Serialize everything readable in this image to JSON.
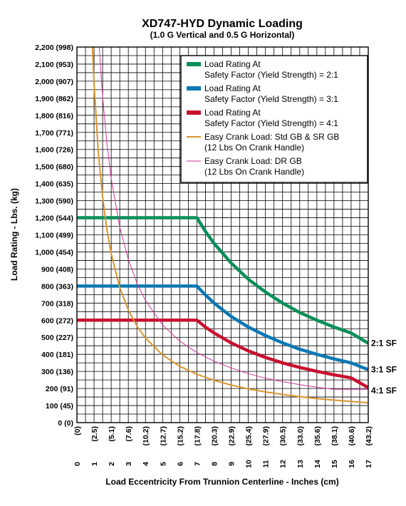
{
  "chart_data": {
    "type": "line",
    "title": "XD747-HYD Dynamic Loading",
    "subtitle": "(1.0 G Vertical and 0.5 G Horizontal)",
    "xlabel": "Load Eccentricity From Trunnion Centerline - Inches (cm)",
    "ylabel": "Load Rating - Lbs. (kg)",
    "xlim": [
      0,
      17
    ],
    "ylim": [
      0,
      2200
    ],
    "grid": true,
    "legend_position": "top-right",
    "x_ticks": [
      {
        "in": "0",
        "cm": "(0)"
      },
      {
        "in": "1",
        "cm": "(2.5)"
      },
      {
        "in": "2",
        "cm": "(5.1)"
      },
      {
        "in": "3",
        "cm": "(7.6)"
      },
      {
        "in": "4",
        "cm": "(10.2)"
      },
      {
        "in": "5",
        "cm": "(12.7)"
      },
      {
        "in": "6",
        "cm": "(15.2)"
      },
      {
        "in": "7",
        "cm": "(17.8)"
      },
      {
        "in": "8",
        "cm": "(20.3)"
      },
      {
        "in": "9",
        "cm": "(22.9)"
      },
      {
        "in": "10",
        "cm": "(25.4)"
      },
      {
        "in": "11",
        "cm": "(27.9)"
      },
      {
        "in": "12",
        "cm": "(30.5)"
      },
      {
        "in": "13",
        "cm": "(33.0)"
      },
      {
        "in": "14",
        "cm": "(35.6)"
      },
      {
        "in": "15",
        "cm": "(38.1)"
      },
      {
        "in": "16",
        "cm": "(40.6)"
      },
      {
        "in": "17",
        "cm": "(43.2)"
      }
    ],
    "y_ticks": [
      "0 (0)",
      "100 (45)",
      "200 (91)",
      "300 (136)",
      "400 (181)",
      "500 (227)",
      "600 (272)",
      "700 (318)",
      "800 (363)",
      "900 (408)",
      "1,000 (454)",
      "1,100 (499)",
      "1,200 (544)",
      "1,300 (590)",
      "1,400 (635)",
      "1,500 (680)",
      "1,600 (726)",
      "1,700 (771)",
      "1,800 (816)",
      "1,900 (862)",
      "2,000 (907)",
      "2,100 (953)",
      "2,200 (998)"
    ],
    "series": [
      {
        "name": "Load Rating At Safety Factor (Yield Strength) = 2:1",
        "legend_lines": [
          "Load Rating At",
          "Safety Factor (Yield Strength) = 2:1"
        ],
        "end_label": "2:1 SF",
        "color": "#0a8f5a",
        "width": "thick",
        "x": [
          0,
          7,
          7.5,
          8,
          9,
          10,
          11,
          12,
          13,
          14,
          15,
          16,
          17
        ],
        "y": [
          1200,
          1200,
          1120,
          1050,
          935,
          840,
          765,
          700,
          645,
          600,
          560,
          525,
          465
        ]
      },
      {
        "name": "Load Rating At Safety Factor (Yield Strength) = 3:1",
        "legend_lines": [
          "Load Rating At",
          "Safety Factor (Yield Strength) = 3:1"
        ],
        "end_label": "3:1 SF",
        "color": "#0a78b4",
        "width": "thick",
        "x": [
          0,
          7,
          7.5,
          8,
          9,
          10,
          11,
          12,
          13,
          14,
          15,
          16,
          17
        ],
        "y": [
          800,
          800,
          748,
          700,
          622,
          560,
          510,
          467,
          430,
          400,
          373,
          350,
          310
        ]
      },
      {
        "name": "Load Rating At Safety Factor (Yield Strength) = 4:1",
        "legend_lines": [
          "Load Rating At",
          "Safety Factor (Yield Strength) = 4:1"
        ],
        "end_label": "4:1 SF",
        "color": "#c8102e",
        "width": "thick",
        "x": [
          0,
          7,
          7.5,
          8,
          9,
          10,
          11,
          12,
          13,
          14,
          15,
          16,
          17
        ],
        "y": [
          600,
          600,
          560,
          525,
          467,
          420,
          382,
          350,
          323,
          300,
          280,
          262,
          205
        ]
      },
      {
        "name": "Easy Crank Load: Std GB & SR GB (12 Lbs On Crank Handle)",
        "legend_lines": [
          "Easy Crank Load: Std GB & SR GB",
          "(12 Lbs On Crank Handle)"
        ],
        "color": "#d9952f",
        "width": "medium",
        "x": [
          0.9,
          1,
          1.25,
          1.5,
          1.75,
          2,
          2.5,
          3,
          3.5,
          4,
          5,
          6,
          7,
          8,
          9,
          10,
          11,
          12,
          13,
          14,
          15,
          16,
          17
        ],
        "y": [
          2200,
          1980,
          1580,
          1320,
          1130,
          990,
          792,
          660,
          565,
          495,
          396,
          330,
          283,
          248,
          220,
          198,
          180,
          165,
          152,
          141,
          132,
          124,
          116
        ]
      },
      {
        "name": "Easy Crank Load: DR GB (12 Lbs On Crank Handle)",
        "legend_lines": [
          "Easy Crank Load: DR GB",
          "(12 Lbs On Crank Handle)"
        ],
        "color": "#d0359a",
        "width": "thin",
        "x": [
          1.3,
          1.5,
          1.75,
          2,
          2.5,
          3,
          3.5,
          4,
          5,
          6,
          7,
          8,
          9,
          10,
          11,
          12,
          13,
          14,
          15,
          16,
          17
        ],
        "y": [
          2200,
          1905,
          1635,
          1430,
          1145,
          955,
          818,
          715,
          572,
          477,
          410,
          360,
          320,
          287,
          260,
          240,
          222,
          207,
          195,
          195,
          195
        ]
      }
    ]
  }
}
